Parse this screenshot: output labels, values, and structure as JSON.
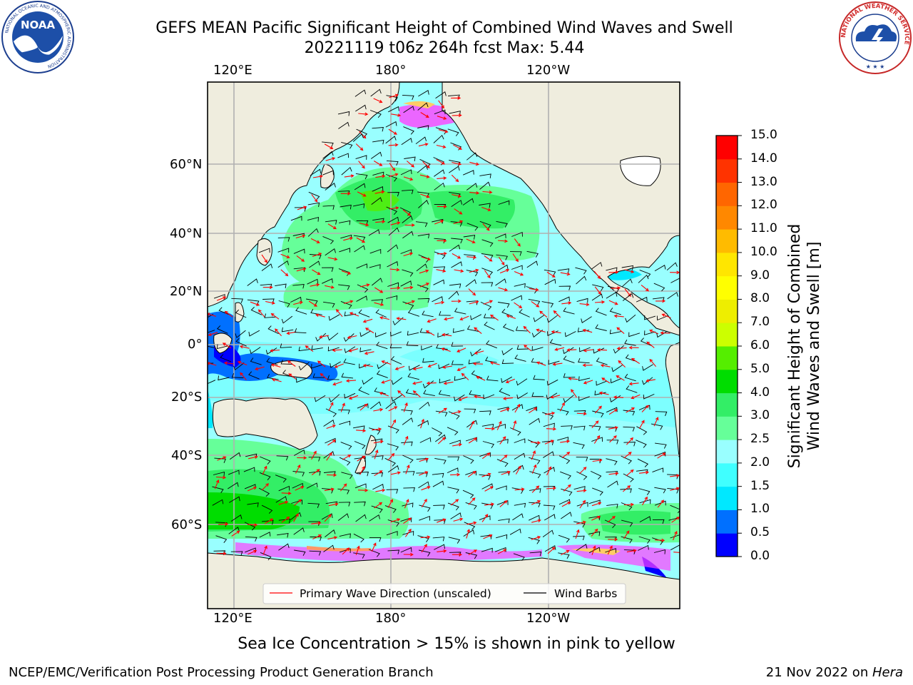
{
  "header": {
    "title_line1": "GEFS MEAN Pacific Significant Height of Combined Wind Waves and Swell",
    "title_line2": "20221119 t06z 264h fcst   Max: 5.44"
  },
  "logos": {
    "noaa_text": "NOAA",
    "noaa_ring_top": "NATIONAL OCEANIC AND ATMOSPHERIC ADMINISTRATION",
    "noaa_ring_bottom": "U.S. DEPARTMENT OF COMMERCE",
    "nws_ring": "NATIONAL WEATHER SERVICE"
  },
  "map": {
    "lon_labels": [
      "120°E",
      "180°",
      "120°W"
    ],
    "lat_labels": [
      "60°N",
      "40°N",
      "20°N",
      "0°",
      "20°S",
      "40°S",
      "60°S"
    ],
    "legend": {
      "wave_direction": "Primary Wave Direction (unscaled)",
      "wind_barbs": "Wind Barbs",
      "wave_color": "#ff0000",
      "barb_color": "#000000"
    },
    "land_color": "#efedde",
    "ice_colors": [
      "#ff40ff",
      "#ff9966",
      "#ffcc66"
    ]
  },
  "colorbar": {
    "title_line1": "Significant Height of Combined",
    "title_line2": "Wind Waves and Swell [m]",
    "ticks": [
      "0.0",
      "0.5",
      "1.0",
      "1.5",
      "2.0",
      "2.5",
      "3.0",
      "4.0",
      "5.0",
      "6.0",
      "7.0",
      "8.0",
      "9.0",
      "10.0",
      "11.0",
      "12.0",
      "13.0",
      "14.0",
      "15.0"
    ],
    "colors": [
      "#0000ff",
      "#0070ff",
      "#00e8ff",
      "#40ffff",
      "#99ffff",
      "#66ff99",
      "#33ee66",
      "#00dd00",
      "#55ee00",
      "#ccff00",
      "#eeee00",
      "#ffff00",
      "#ffe600",
      "#ffbb00",
      "#ff8800",
      "#ff6600",
      "#ff3300",
      "#ff0000"
    ]
  },
  "note": "Sea Ice Concentration > 15% is shown in pink to yellow",
  "footer": {
    "left": "NCEP/EMC/Verification Post Processing Product Generation Branch",
    "right_prefix": "21 Nov 2022 on ",
    "right_host": "Hera"
  }
}
